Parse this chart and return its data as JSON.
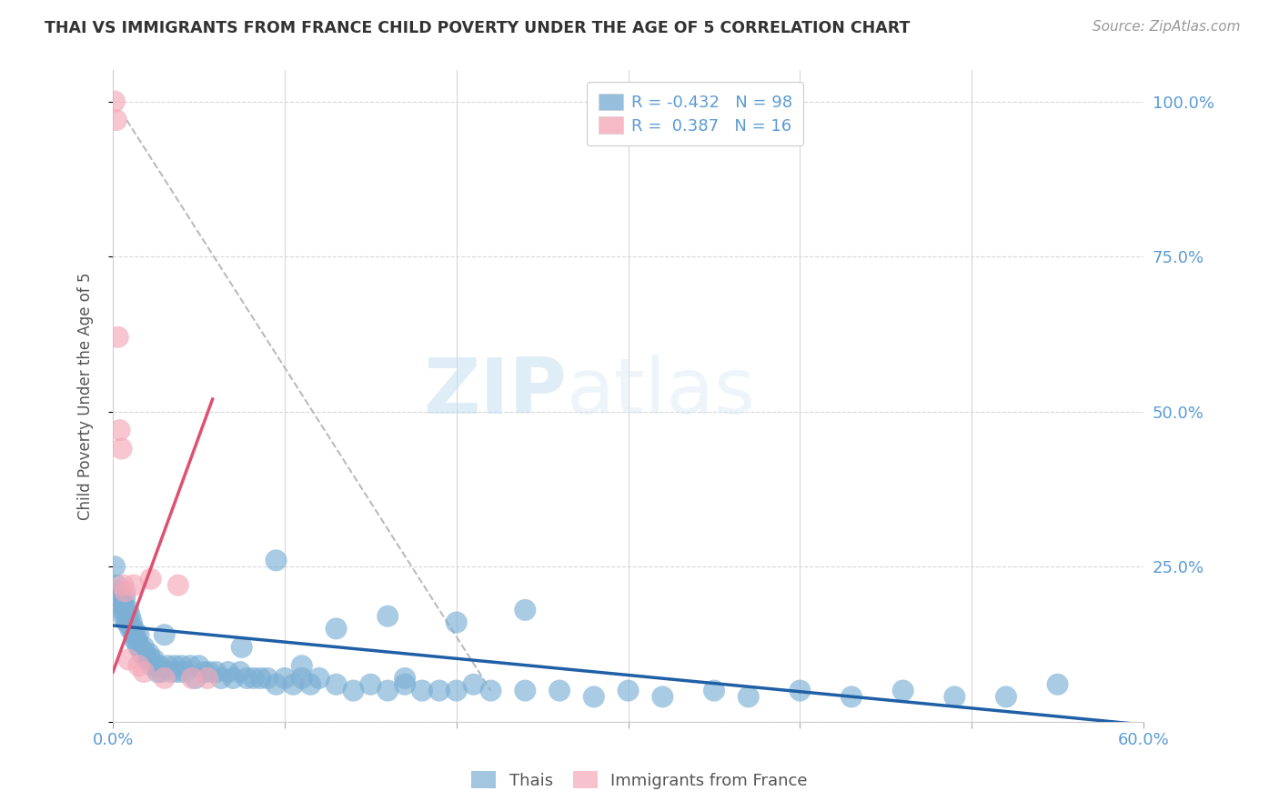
{
  "title": "THAI VS IMMIGRANTS FROM FRANCE CHILD POVERTY UNDER THE AGE OF 5 CORRELATION CHART",
  "source": "Source: ZipAtlas.com",
  "ylabel": "Child Poverty Under the Age of 5",
  "xlim": [
    0.0,
    0.6
  ],
  "ylim": [
    0.0,
    1.05
  ],
  "xticks": [
    0.0,
    0.1,
    0.2,
    0.3,
    0.4,
    0.5,
    0.6
  ],
  "xticklabels": [
    "0.0%",
    "",
    "",
    "",
    "",
    "",
    "60.0%"
  ],
  "ytick_positions": [
    0.0,
    0.25,
    0.5,
    0.75,
    1.0
  ],
  "yticklabels_right": [
    "",
    "25.0%",
    "50.0%",
    "75.0%",
    "100.0%"
  ],
  "thai_color": "#7bafd4",
  "france_color": "#f4a8b8",
  "thai_line_color": "#1f5fa6",
  "france_line_color": "#e05070",
  "dash_line_color": "#bbbbbb",
  "background_color": "#ffffff",
  "grid_color": "#d8d8d8",
  "legend_R_thai": "-0.432",
  "legend_N_thai": "98",
  "legend_R_france": "0.387",
  "legend_N_france": "16",
  "watermark_zip": "ZIP",
  "watermark_atlas": "atlas",
  "thai_scatter_x": [
    0.001,
    0.002,
    0.003,
    0.003,
    0.004,
    0.004,
    0.005,
    0.005,
    0.006,
    0.006,
    0.007,
    0.007,
    0.008,
    0.008,
    0.009,
    0.009,
    0.01,
    0.01,
    0.011,
    0.011,
    0.012,
    0.012,
    0.013,
    0.013,
    0.014,
    0.015,
    0.015,
    0.016,
    0.017,
    0.018,
    0.019,
    0.02,
    0.021,
    0.022,
    0.023,
    0.024,
    0.025,
    0.026,
    0.027,
    0.028,
    0.03,
    0.032,
    0.034,
    0.036,
    0.038,
    0.04,
    0.042,
    0.045,
    0.048,
    0.05,
    0.053,
    0.056,
    0.06,
    0.063,
    0.067,
    0.07,
    0.074,
    0.078,
    0.082,
    0.086,
    0.09,
    0.095,
    0.1,
    0.105,
    0.11,
    0.115,
    0.12,
    0.13,
    0.14,
    0.15,
    0.16,
    0.17,
    0.18,
    0.19,
    0.2,
    0.21,
    0.22,
    0.24,
    0.26,
    0.28,
    0.3,
    0.32,
    0.35,
    0.37,
    0.4,
    0.43,
    0.46,
    0.49,
    0.52,
    0.55,
    0.16,
    0.24,
    0.095,
    0.13,
    0.2,
    0.17,
    0.11,
    0.075
  ],
  "thai_scatter_y": [
    0.25,
    0.22,
    0.21,
    0.2,
    0.2,
    0.19,
    0.2,
    0.18,
    0.19,
    0.17,
    0.18,
    0.2,
    0.17,
    0.16,
    0.16,
    0.18,
    0.15,
    0.17,
    0.16,
    0.15,
    0.15,
    0.14,
    0.14,
    0.13,
    0.13,
    0.12,
    0.14,
    0.12,
    0.11,
    0.12,
    0.11,
    0.1,
    0.11,
    0.1,
    0.09,
    0.1,
    0.09,
    0.08,
    0.09,
    0.08,
    0.14,
    0.09,
    0.08,
    0.09,
    0.08,
    0.09,
    0.08,
    0.09,
    0.07,
    0.09,
    0.08,
    0.08,
    0.08,
    0.07,
    0.08,
    0.07,
    0.08,
    0.07,
    0.07,
    0.07,
    0.07,
    0.06,
    0.07,
    0.06,
    0.07,
    0.06,
    0.07,
    0.06,
    0.05,
    0.06,
    0.05,
    0.06,
    0.05,
    0.05,
    0.05,
    0.06,
    0.05,
    0.05,
    0.05,
    0.04,
    0.05,
    0.04,
    0.05,
    0.04,
    0.05,
    0.04,
    0.05,
    0.04,
    0.04,
    0.06,
    0.17,
    0.18,
    0.26,
    0.15,
    0.16,
    0.07,
    0.09,
    0.12
  ],
  "france_scatter_x": [
    0.001,
    0.002,
    0.003,
    0.004,
    0.005,
    0.006,
    0.007,
    0.009,
    0.012,
    0.015,
    0.018,
    0.022,
    0.03,
    0.038,
    0.046,
    0.055
  ],
  "france_scatter_y": [
    1.0,
    0.97,
    0.62,
    0.47,
    0.44,
    0.22,
    0.21,
    0.1,
    0.22,
    0.09,
    0.08,
    0.23,
    0.07,
    0.22,
    0.07,
    0.07
  ],
  "thai_line_x": [
    0.0,
    0.6
  ],
  "thai_line_y": [
    0.155,
    -0.005
  ],
  "france_line_x": [
    0.0,
    0.058
  ],
  "france_line_y": [
    0.08,
    0.52
  ],
  "dash_line_x": [
    0.008,
    0.22
  ],
  "dash_line_y": [
    0.97,
    0.05
  ]
}
